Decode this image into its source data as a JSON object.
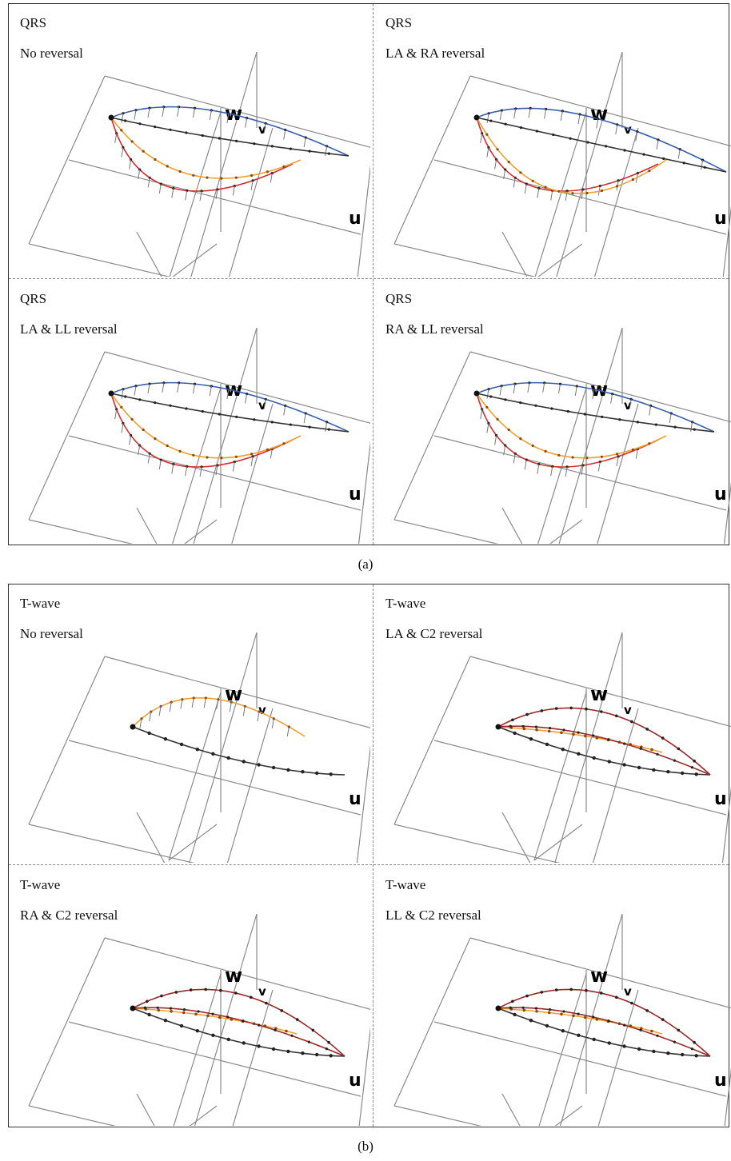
{
  "figure_a": {
    "caption": "(a)",
    "panels": [
      {
        "title": "QRS",
        "subtitle": "No reversal",
        "variant": 0
      },
      {
        "title": "QRS",
        "subtitle": "LA & RA reversal",
        "variant": 1
      },
      {
        "title": "QRS",
        "subtitle": "LA & LL reversal",
        "variant": 2
      },
      {
        "title": "QRS",
        "subtitle": "RA & LL reversal",
        "variant": 3
      }
    ]
  },
  "figure_b": {
    "caption": "(b)",
    "panels": [
      {
        "title": "T-wave",
        "subtitle": "No reversal",
        "variant": 0
      },
      {
        "title": "T-wave",
        "subtitle": "LA & C2 reversal",
        "variant": 1
      },
      {
        "title": "T-wave",
        "subtitle": "RA & C2 reversal",
        "variant": 2
      },
      {
        "title": "T-wave",
        "subtitle": "LL & C2 reversal",
        "variant": 3
      }
    ]
  },
  "axes": {
    "w": "w",
    "v": "v",
    "u": "u"
  },
  "colors": {
    "grid": "#8a8a8a",
    "blue": "#3a5fb0",
    "red": "#d83030",
    "orange": "#f0a030",
    "dark": "#333333",
    "darkred": "#9a2a2a"
  }
}
